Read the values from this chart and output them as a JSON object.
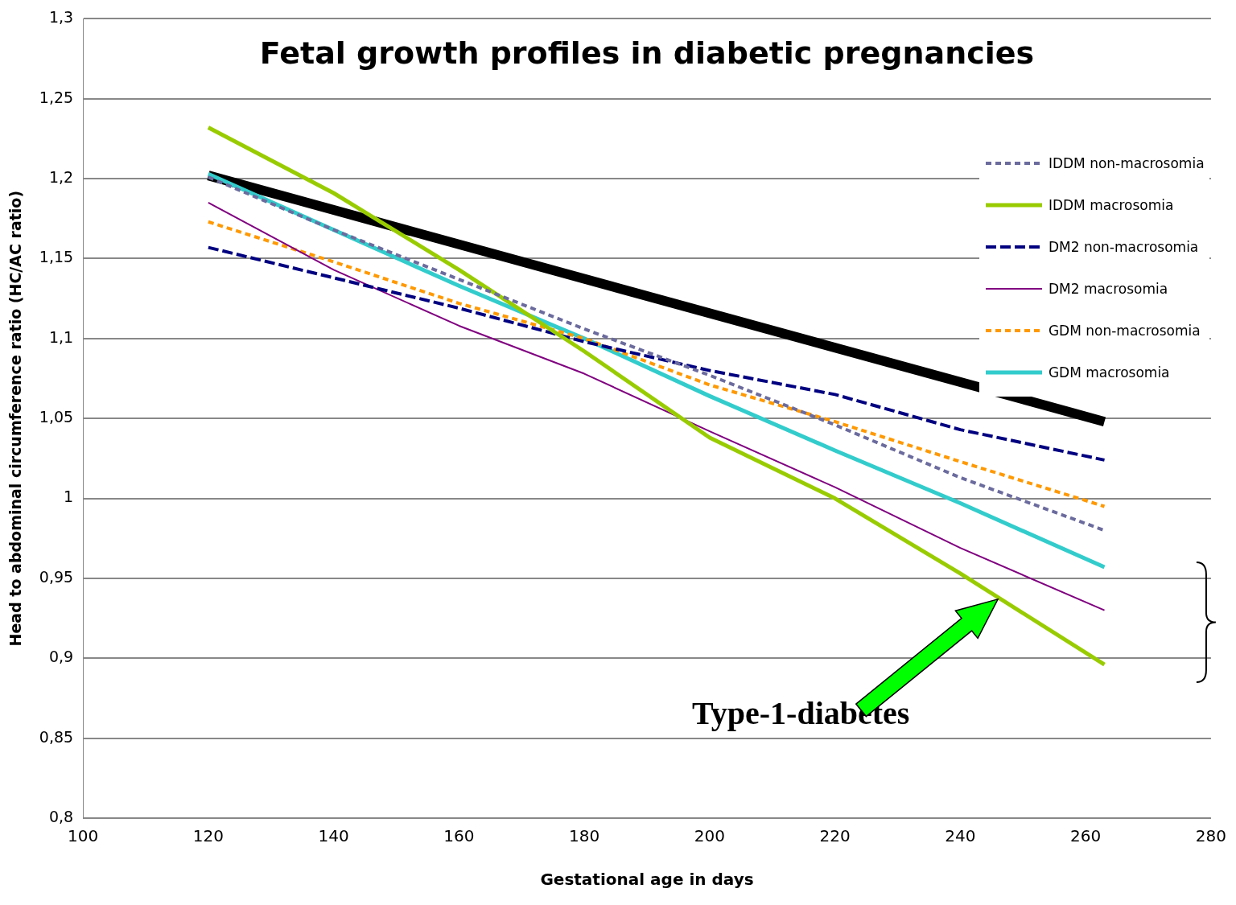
{
  "chart_data": {
    "type": "line",
    "title": "Fetal growth profiles in diabetic pregnancies",
    "xlabel": "Gestational age in days",
    "ylabel": "Head to abdominal circumference ratio (HC/AC ratio)",
    "x": [
      120,
      140,
      160,
      180,
      200,
      220,
      240,
      263
    ],
    "series": [
      {
        "name": "IDDM non-macrosomia",
        "color": "#6b6b9e",
        "line_style": "dotted",
        "values": [
          1.201,
          1.168,
          1.137,
          1.106,
          1.077,
          1.046,
          1.013,
          0.98
        ]
      },
      {
        "name": "IDDM macrosomia",
        "color": "#99cc00",
        "values": [
          1.232,
          1.191,
          1.143,
          1.092,
          1.038,
          1.0,
          0.953,
          0.896
        ]
      },
      {
        "name": "DM2 non-macrosomia",
        "color": "#000080",
        "line_style": "dashed",
        "values": [
          1.157,
          1.138,
          1.119,
          1.098,
          1.08,
          1.065,
          1.043,
          1.024
        ]
      },
      {
        "name": "DM2 macrosomia",
        "color": "#800080",
        "values": [
          1.185,
          1.143,
          1.108,
          1.078,
          1.042,
          1.007,
          0.969,
          0.93
        ]
      },
      {
        "name": "GDM non-macrosomia",
        "color": "#ff9900",
        "line_style": "dotted",
        "values": [
          1.173,
          1.148,
          1.122,
          1.1,
          1.071,
          1.048,
          1.023,
          0.995
        ]
      },
      {
        "name": "GDM macrosomia",
        "color": "#33cccc",
        "values": [
          1.203,
          1.168,
          1.133,
          1.1,
          1.064,
          1.03,
          0.997,
          0.957
        ]
      },
      {
        "type": "line",
        "color": "#000000",
        "x": [
          120,
          263
        ],
        "values": [
          1.202,
          1.048
        ]
      }
    ],
    "xlim": [
      100,
      280
    ],
    "xticks": [
      100,
      120,
      140,
      160,
      180,
      200,
      220,
      240,
      260,
      280
    ],
    "ylim": [
      0.8,
      1.3
    ],
    "yticks": [
      {
        "value": 0.8,
        "label": "0,8"
      },
      {
        "value": 0.85,
        "label": "0,85"
      },
      {
        "value": 0.9,
        "label": "0,9"
      },
      {
        "value": 0.95,
        "label": "0,95"
      },
      {
        "value": 1,
        "label": "1"
      },
      {
        "value": 1.05,
        "label": "1,05"
      },
      {
        "value": 1.1,
        "label": "1,1"
      },
      {
        "value": 1.15,
        "label": "1,15"
      },
      {
        "value": 1.2,
        "label": "1,2"
      },
      {
        "value": 1.25,
        "label": "1,25"
      },
      {
        "value": 1.3,
        "label": "1,3"
      }
    ],
    "grid": "y",
    "legend": "top right",
    "marker": "none",
    "annotations": [
      "Type-1-diabetes"
    ]
  }
}
